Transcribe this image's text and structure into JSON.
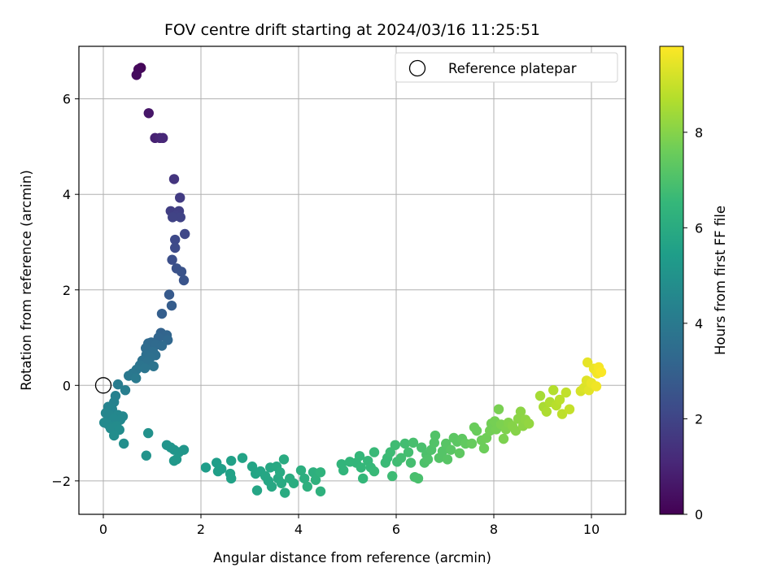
{
  "chart_data": {
    "type": "scatter",
    "title": "FOV centre drift starting at 2024/03/16 11:25:51",
    "xlabel": "Angular distance from reference (arcmin)",
    "ylabel": "Rotation from reference (arcmin)",
    "xlim": [
      -0.5,
      10.7
    ],
    "ylim": [
      -2.7,
      7.1
    ],
    "xticks": [
      0,
      2,
      4,
      6,
      8,
      10
    ],
    "yticks": [
      -2,
      0,
      2,
      4,
      6
    ],
    "xtick_labels": [
      "0",
      "2",
      "4",
      "6",
      "8",
      "10"
    ],
    "ytick_labels": [
      "−2",
      "0",
      "2",
      "4",
      "6"
    ],
    "grid": true,
    "legend": {
      "placement": "top-right",
      "entries": [
        {
          "label": "Reference platepar",
          "marker": "hollow-circle",
          "color": "#000000"
        }
      ]
    },
    "reference_point": {
      "x": 0,
      "y": 0
    },
    "colorbar": {
      "label": "Hours from first FF file",
      "range": [
        0,
        9.8
      ],
      "ticks": [
        0,
        2,
        4,
        6,
        8
      ],
      "tick_labels": [
        "0",
        "2",
        "4",
        "6",
        "8"
      ],
      "colormap": "viridis"
    },
    "points": [
      {
        "x": 0.77,
        "y": 6.65,
        "t": 0.1
      },
      {
        "x": 0.72,
        "y": 6.62,
        "t": 0.2
      },
      {
        "x": 0.68,
        "y": 6.5,
        "t": 0.3
      },
      {
        "x": 0.93,
        "y": 5.7,
        "t": 0.6
      },
      {
        "x": 1.06,
        "y": 5.18,
        "t": 0.9
      },
      {
        "x": 1.16,
        "y": 5.18,
        "t": 1.0
      },
      {
        "x": 1.22,
        "y": 5.18,
        "t": 1.1
      },
      {
        "x": 1.45,
        "y": 4.32,
        "t": 1.5
      },
      {
        "x": 1.57,
        "y": 3.93,
        "t": 1.7
      },
      {
        "x": 1.38,
        "y": 3.65,
        "t": 1.8
      },
      {
        "x": 1.55,
        "y": 3.65,
        "t": 1.85
      },
      {
        "x": 1.48,
        "y": 3.55,
        "t": 1.9
      },
      {
        "x": 1.58,
        "y": 3.52,
        "t": 1.95
      },
      {
        "x": 1.42,
        "y": 3.52,
        "t": 1.95
      },
      {
        "x": 1.67,
        "y": 3.17,
        "t": 2.1
      },
      {
        "x": 1.47,
        "y": 3.05,
        "t": 2.15
      },
      {
        "x": 1.47,
        "y": 2.88,
        "t": 2.2
      },
      {
        "x": 1.41,
        "y": 2.63,
        "t": 2.35
      },
      {
        "x": 1.5,
        "y": 2.45,
        "t": 2.45
      },
      {
        "x": 1.6,
        "y": 2.38,
        "t": 2.5
      },
      {
        "x": 1.65,
        "y": 2.2,
        "t": 2.55
      },
      {
        "x": 1.35,
        "y": 1.9,
        "t": 2.75
      },
      {
        "x": 1.4,
        "y": 1.67,
        "t": 2.85
      },
      {
        "x": 1.2,
        "y": 1.5,
        "t": 2.95
      },
      {
        "x": 1.18,
        "y": 1.1,
        "t": 3.1
      },
      {
        "x": 1.3,
        "y": 1.05,
        "t": 3.15
      },
      {
        "x": 1.13,
        "y": 1.0,
        "t": 3.2
      },
      {
        "x": 1.32,
        "y": 0.95,
        "t": 3.25
      },
      {
        "x": 0.98,
        "y": 0.9,
        "t": 3.3
      },
      {
        "x": 0.92,
        "y": 0.88,
        "t": 3.35
      },
      {
        "x": 1.08,
        "y": 0.85,
        "t": 3.4
      },
      {
        "x": 1.2,
        "y": 0.83,
        "t": 3.4
      },
      {
        "x": 0.87,
        "y": 0.78,
        "t": 3.45
      },
      {
        "x": 1.02,
        "y": 0.7,
        "t": 3.5
      },
      {
        "x": 0.88,
        "y": 0.64,
        "t": 3.55
      },
      {
        "x": 1.07,
        "y": 0.63,
        "t": 3.55
      },
      {
        "x": 0.96,
        "y": 0.58,
        "t": 3.6
      },
      {
        "x": 0.8,
        "y": 0.52,
        "t": 3.65
      },
      {
        "x": 0.9,
        "y": 0.48,
        "t": 3.7
      },
      {
        "x": 0.75,
        "y": 0.42,
        "t": 3.75
      },
      {
        "x": 1.03,
        "y": 0.4,
        "t": 3.75
      },
      {
        "x": 0.85,
        "y": 0.36,
        "t": 3.8
      },
      {
        "x": 0.68,
        "y": 0.33,
        "t": 3.85
      },
      {
        "x": 0.6,
        "y": 0.25,
        "t": 3.9
      },
      {
        "x": 0.52,
        "y": 0.2,
        "t": 3.95
      },
      {
        "x": 0.67,
        "y": 0.15,
        "t": 4.0
      },
      {
        "x": 0.3,
        "y": 0.02,
        "t": 4.1
      },
      {
        "x": 0.45,
        "y": -0.1,
        "t": 4.2
      },
      {
        "x": 0.25,
        "y": -0.22,
        "t": 4.3
      },
      {
        "x": 0.22,
        "y": -0.35,
        "t": 4.35
      },
      {
        "x": 0.1,
        "y": -0.45,
        "t": 4.4
      },
      {
        "x": 0.18,
        "y": -0.5,
        "t": 4.45
      },
      {
        "x": 0.05,
        "y": -0.58,
        "t": 4.5
      },
      {
        "x": 0.13,
        "y": -0.62,
        "t": 4.5
      },
      {
        "x": 0.3,
        "y": -0.62,
        "t": 4.55
      },
      {
        "x": 0.4,
        "y": -0.65,
        "t": 4.55
      },
      {
        "x": 0.22,
        "y": -0.7,
        "t": 4.6
      },
      {
        "x": 0.35,
        "y": -0.72,
        "t": 4.6
      },
      {
        "x": 0.02,
        "y": -0.78,
        "t": 4.65
      },
      {
        "x": 0.1,
        "y": -0.82,
        "t": 4.65
      },
      {
        "x": 0.27,
        "y": -0.85,
        "t": 4.7
      },
      {
        "x": 0.15,
        "y": -0.9,
        "t": 4.7
      },
      {
        "x": 0.33,
        "y": -0.93,
        "t": 4.75
      },
      {
        "x": 0.22,
        "y": -1.05,
        "t": 4.8
      },
      {
        "x": 0.42,
        "y": -1.22,
        "t": 4.85
      },
      {
        "x": 0.92,
        "y": -1.0,
        "t": 4.95
      },
      {
        "x": 0.88,
        "y": -1.47,
        "t": 5.0
      },
      {
        "x": 1.3,
        "y": -1.25,
        "t": 5.05
      },
      {
        "x": 1.38,
        "y": -1.3,
        "t": 5.1
      },
      {
        "x": 1.45,
        "y": -1.35,
        "t": 5.1
      },
      {
        "x": 1.55,
        "y": -1.4,
        "t": 5.15
      },
      {
        "x": 1.65,
        "y": -1.35,
        "t": 5.15
      },
      {
        "x": 1.5,
        "y": -1.55,
        "t": 5.2
      },
      {
        "x": 1.45,
        "y": -1.58,
        "t": 5.2
      },
      {
        "x": 2.1,
        "y": -1.72,
        "t": 5.4
      },
      {
        "x": 2.32,
        "y": -1.62,
        "t": 5.45
      },
      {
        "x": 2.42,
        "y": -1.75,
        "t": 5.5
      },
      {
        "x": 2.35,
        "y": -1.8,
        "t": 5.5
      },
      {
        "x": 2.62,
        "y": -1.58,
        "t": 5.55
      },
      {
        "x": 2.6,
        "y": -1.85,
        "t": 5.6
      },
      {
        "x": 2.62,
        "y": -1.95,
        "t": 5.6
      },
      {
        "x": 2.85,
        "y": -1.52,
        "t": 5.65
      },
      {
        "x": 3.05,
        "y": -1.7,
        "t": 5.7
      },
      {
        "x": 3.12,
        "y": -1.85,
        "t": 5.7
      },
      {
        "x": 3.22,
        "y": -1.8,
        "t": 5.75
      },
      {
        "x": 3.15,
        "y": -2.2,
        "t": 5.75
      },
      {
        "x": 3.32,
        "y": -1.9,
        "t": 5.8
      },
      {
        "x": 3.38,
        "y": -2.0,
        "t": 5.8
      },
      {
        "x": 3.42,
        "y": -1.72,
        "t": 5.85
      },
      {
        "x": 3.45,
        "y": -2.12,
        "t": 5.85
      },
      {
        "x": 3.55,
        "y": -1.7,
        "t": 5.9
      },
      {
        "x": 3.58,
        "y": -1.95,
        "t": 5.9
      },
      {
        "x": 3.62,
        "y": -1.82,
        "t": 5.95
      },
      {
        "x": 3.65,
        "y": -2.05,
        "t": 5.95
      },
      {
        "x": 3.7,
        "y": -1.55,
        "t": 6.0
      },
      {
        "x": 3.72,
        "y": -2.25,
        "t": 6.0
      },
      {
        "x": 3.82,
        "y": -1.95,
        "t": 6.05
      },
      {
        "x": 3.9,
        "y": -2.05,
        "t": 6.05
      },
      {
        "x": 4.05,
        "y": -1.78,
        "t": 6.15
      },
      {
        "x": 4.12,
        "y": -1.95,
        "t": 6.15
      },
      {
        "x": 4.18,
        "y": -2.12,
        "t": 6.2
      },
      {
        "x": 4.3,
        "y": -1.82,
        "t": 6.2
      },
      {
        "x": 4.35,
        "y": -1.98,
        "t": 6.25
      },
      {
        "x": 4.45,
        "y": -2.22,
        "t": 6.25
      },
      {
        "x": 4.45,
        "y": -1.82,
        "t": 6.3
      },
      {
        "x": 4.88,
        "y": -1.65,
        "t": 6.4
      },
      {
        "x": 4.92,
        "y": -1.78,
        "t": 6.4
      },
      {
        "x": 5.05,
        "y": -1.6,
        "t": 6.45
      },
      {
        "x": 5.18,
        "y": -1.62,
        "t": 6.45
      },
      {
        "x": 5.25,
        "y": -1.48,
        "t": 6.5
      },
      {
        "x": 5.28,
        "y": -1.72,
        "t": 6.5
      },
      {
        "x": 5.32,
        "y": -1.95,
        "t": 6.5
      },
      {
        "x": 5.42,
        "y": -1.58,
        "t": 6.55
      },
      {
        "x": 5.48,
        "y": -1.72,
        "t": 6.55
      },
      {
        "x": 5.55,
        "y": -1.4,
        "t": 6.6
      },
      {
        "x": 5.55,
        "y": -1.8,
        "t": 6.6
      },
      {
        "x": 5.78,
        "y": -1.62,
        "t": 6.65
      },
      {
        "x": 5.82,
        "y": -1.52,
        "t": 6.65
      },
      {
        "x": 5.88,
        "y": -1.4,
        "t": 6.7
      },
      {
        "x": 5.92,
        "y": -1.9,
        "t": 6.7
      },
      {
        "x": 5.98,
        "y": -1.25,
        "t": 6.75
      },
      {
        "x": 6.02,
        "y": -1.6,
        "t": 6.75
      },
      {
        "x": 6.1,
        "y": -1.52,
        "t": 6.8
      },
      {
        "x": 6.18,
        "y": -1.22,
        "t": 6.8
      },
      {
        "x": 6.25,
        "y": -1.4,
        "t": 6.85
      },
      {
        "x": 6.3,
        "y": -1.62,
        "t": 6.85
      },
      {
        "x": 6.35,
        "y": -1.2,
        "t": 6.9
      },
      {
        "x": 6.38,
        "y": -1.92,
        "t": 6.9
      },
      {
        "x": 6.45,
        "y": -1.95,
        "t": 6.95
      },
      {
        "x": 6.52,
        "y": -1.3,
        "t": 6.95
      },
      {
        "x": 6.58,
        "y": -1.62,
        "t": 7.0
      },
      {
        "x": 6.62,
        "y": -1.45,
        "t": 7.0
      },
      {
        "x": 6.65,
        "y": -1.55,
        "t": 7.05
      },
      {
        "x": 6.72,
        "y": -1.35,
        "t": 7.05
      },
      {
        "x": 6.78,
        "y": -1.2,
        "t": 7.1
      },
      {
        "x": 6.8,
        "y": -1.05,
        "t": 7.1
      },
      {
        "x": 6.88,
        "y": -1.52,
        "t": 7.15
      },
      {
        "x": 6.95,
        "y": -1.38,
        "t": 7.15
      },
      {
        "x": 7.02,
        "y": -1.22,
        "t": 7.2
      },
      {
        "x": 7.05,
        "y": -1.55,
        "t": 7.2
      },
      {
        "x": 7.12,
        "y": -1.35,
        "t": 7.25
      },
      {
        "x": 7.18,
        "y": -1.1,
        "t": 7.3
      },
      {
        "x": 7.25,
        "y": -1.18,
        "t": 7.3
      },
      {
        "x": 7.3,
        "y": -1.42,
        "t": 7.35
      },
      {
        "x": 7.35,
        "y": -1.12,
        "t": 7.35
      },
      {
        "x": 7.42,
        "y": -1.22,
        "t": 7.4
      },
      {
        "x": 7.55,
        "y": -1.22,
        "t": 7.5
      },
      {
        "x": 7.6,
        "y": -0.88,
        "t": 7.55
      },
      {
        "x": 7.65,
        "y": -0.95,
        "t": 7.55
      },
      {
        "x": 7.75,
        "y": -1.15,
        "t": 7.6
      },
      {
        "x": 7.8,
        "y": -1.32,
        "t": 7.6
      },
      {
        "x": 7.85,
        "y": -1.1,
        "t": 7.65
      },
      {
        "x": 7.92,
        "y": -0.95,
        "t": 7.7
      },
      {
        "x": 7.95,
        "y": -0.8,
        "t": 7.7
      },
      {
        "x": 8.02,
        "y": -0.75,
        "t": 7.75
      },
      {
        "x": 8.05,
        "y": -0.92,
        "t": 7.75
      },
      {
        "x": 8.1,
        "y": -0.5,
        "t": 7.8
      },
      {
        "x": 8.15,
        "y": -0.82,
        "t": 7.85
      },
      {
        "x": 8.2,
        "y": -1.12,
        "t": 7.85
      },
      {
        "x": 8.25,
        "y": -0.92,
        "t": 7.9
      },
      {
        "x": 8.3,
        "y": -0.78,
        "t": 7.95
      },
      {
        "x": 8.38,
        "y": -0.85,
        "t": 8.0
      },
      {
        "x": 8.45,
        "y": -0.95,
        "t": 8.0
      },
      {
        "x": 8.5,
        "y": -0.7,
        "t": 8.05
      },
      {
        "x": 8.55,
        "y": -0.55,
        "t": 8.1
      },
      {
        "x": 8.6,
        "y": -0.85,
        "t": 8.1
      },
      {
        "x": 8.65,
        "y": -0.72,
        "t": 8.15
      },
      {
        "x": 8.72,
        "y": -0.8,
        "t": 8.2
      },
      {
        "x": 8.95,
        "y": -0.22,
        "t": 8.5
      },
      {
        "x": 9.02,
        "y": -0.45,
        "t": 8.55
      },
      {
        "x": 9.08,
        "y": -0.55,
        "t": 8.6
      },
      {
        "x": 9.15,
        "y": -0.35,
        "t": 8.65
      },
      {
        "x": 9.22,
        "y": -0.1,
        "t": 8.7
      },
      {
        "x": 9.28,
        "y": -0.42,
        "t": 8.75
      },
      {
        "x": 9.35,
        "y": -0.3,
        "t": 8.8
      },
      {
        "x": 9.4,
        "y": -0.6,
        "t": 8.85
      },
      {
        "x": 9.48,
        "y": -0.15,
        "t": 8.9
      },
      {
        "x": 9.55,
        "y": -0.5,
        "t": 8.95
      },
      {
        "x": 9.78,
        "y": -0.12,
        "t": 9.2
      },
      {
        "x": 9.85,
        "y": -0.05,
        "t": 9.3
      },
      {
        "x": 9.9,
        "y": 0.1,
        "t": 9.35
      },
      {
        "x": 9.95,
        "y": -0.1,
        "t": 9.4
      },
      {
        "x": 9.92,
        "y": 0.48,
        "t": 9.45
      },
      {
        "x": 10.0,
        "y": 0.05,
        "t": 9.5
      },
      {
        "x": 10.05,
        "y": 0.35,
        "t": 9.55
      },
      {
        "x": 10.1,
        "y": -0.02,
        "t": 9.6
      },
      {
        "x": 10.12,
        "y": 0.25,
        "t": 9.65
      },
      {
        "x": 10.15,
        "y": 0.38,
        "t": 9.7
      },
      {
        "x": 10.2,
        "y": 0.28,
        "t": 9.75
      }
    ]
  }
}
